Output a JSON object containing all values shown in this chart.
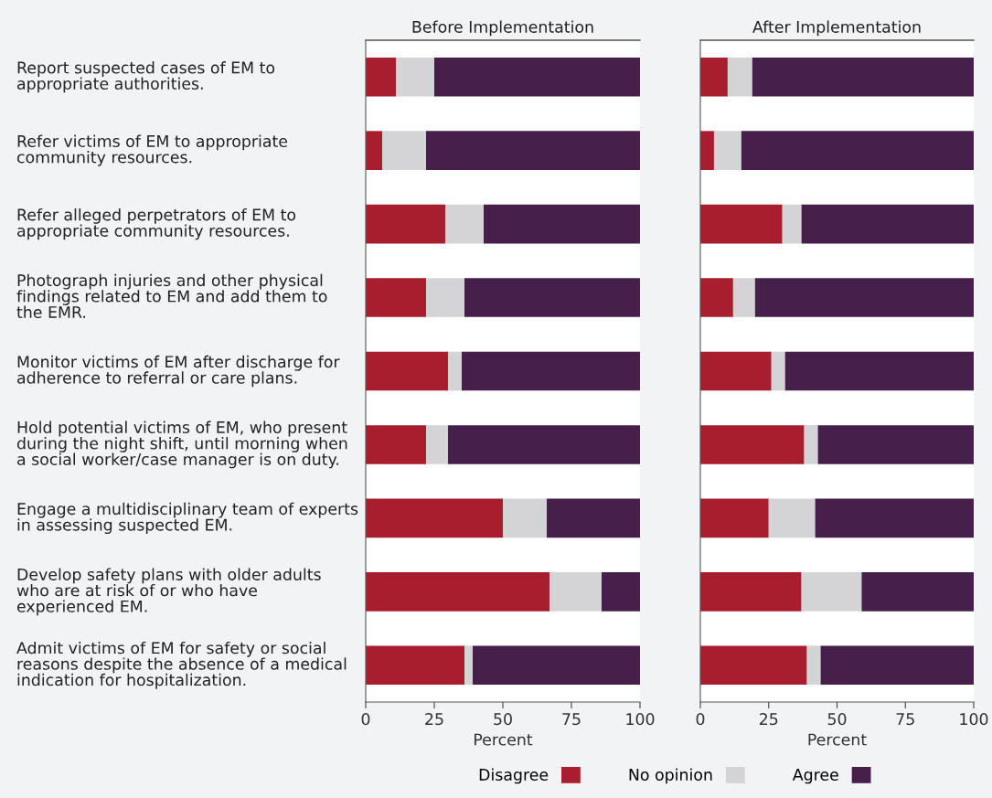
{
  "chart_data": [
    {
      "type": "bar",
      "orientation": "horizontal",
      "stacked": true,
      "title": "Before Implementation",
      "xlabel": "Percent",
      "xlim": [
        0,
        100
      ],
      "xticks": [
        0,
        25,
        50,
        75,
        100
      ],
      "grid": false,
      "legend": "bottom",
      "categories": [
        "Report suspected cases of EM to\nappropriate authorities.",
        "Refer victims of EM to appropriate\ncommunity resources.",
        "Refer alleged perpetrators of EM to\nappropriate community resources.",
        "Photograph injuries and other physical\nfindings related to EM and add them to\nthe EMR.",
        "Monitor victims of EM after discharge for\nadherence to referral or care plans.",
        "Hold potential victims of EM, who present\nduring the night shift, until morning when\na social worker/case manager is on duty.",
        "Engage a multidisciplinary team of experts\nin assessing suspected EM.",
        "Develop safety plans with older adults\nwho are at risk of or who have\nexperienced EM.",
        "Admit victims of EM for safety or social\nreasons despite the absence of a medical\nindication for hospitalization."
      ],
      "series": [
        {
          "name": "Disagree",
          "color": "#a91e2e",
          "values": [
            11,
            6,
            29,
            22,
            30,
            22,
            50,
            67,
            36
          ]
        },
        {
          "name": "No opinion",
          "color": "#d4d4d6",
          "values": [
            14,
            16,
            14,
            14,
            5,
            8,
            16,
            19,
            3
          ]
        },
        {
          "name": "Agree",
          "color": "#46204a",
          "values": [
            75,
            78,
            57,
            64,
            65,
            70,
            34,
            14,
            61
          ]
        }
      ]
    },
    {
      "type": "bar",
      "orientation": "horizontal",
      "stacked": true,
      "title": "After Implementation",
      "xlabel": "Percent",
      "xlim": [
        0,
        100
      ],
      "xticks": [
        0,
        25,
        50,
        75,
        100
      ],
      "grid": false,
      "categories": [
        null,
        null,
        null,
        null,
        null,
        null,
        null,
        null,
        null
      ],
      "series": [
        {
          "color": "#a91e2e",
          "values": [
            10,
            5,
            30,
            12,
            26,
            38,
            25,
            37,
            39
          ]
        },
        {
          "color": "#d4d4d6",
          "values": [
            9,
            10,
            7,
            8,
            5,
            5,
            17,
            22,
            5
          ]
        },
        {
          "color": "#46204a",
          "values": [
            81,
            85,
            63,
            80,
            69,
            57,
            58,
            41,
            56
          ]
        }
      ]
    }
  ]
}
